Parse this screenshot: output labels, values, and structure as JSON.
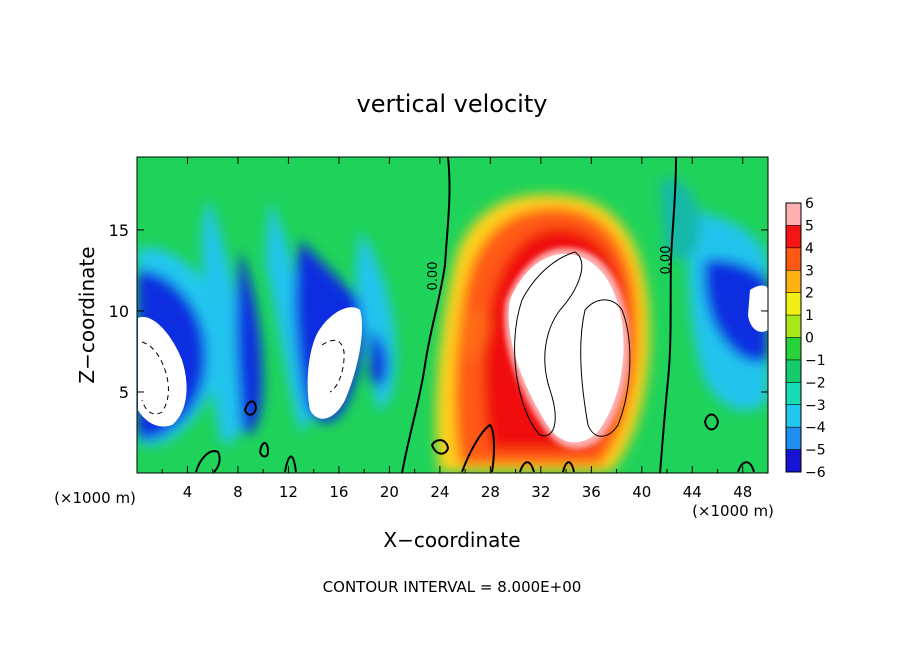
{
  "chart_data": {
    "type": "heatmap",
    "title": "vertical velocity",
    "xlabel": "X−coordinate",
    "ylabel": "Z−coordinate",
    "x_unit_left": "(×1000 m)",
    "x_unit_right": "(×1000 m)",
    "xlim": [
      0,
      50
    ],
    "ylim": [
      0,
      19.5
    ],
    "xticks": [
      4,
      8,
      12,
      16,
      20,
      24,
      28,
      32,
      36,
      40,
      44,
      48
    ],
    "yticks": [
      5,
      10,
      15
    ],
    "colorbar": {
      "ticks": [
        "6",
        "5",
        "4",
        "3",
        "2",
        "1",
        "0",
        "−1",
        "−2",
        "−3",
        "−4",
        "−5",
        "−6"
      ],
      "range": [
        -6,
        6
      ]
    },
    "contour_labels": [
      "0.00",
      "0.00"
    ],
    "footer": "CONTOUR INTERVAL = 8.000E+00",
    "grid": false,
    "legend": "colorbar-right"
  }
}
